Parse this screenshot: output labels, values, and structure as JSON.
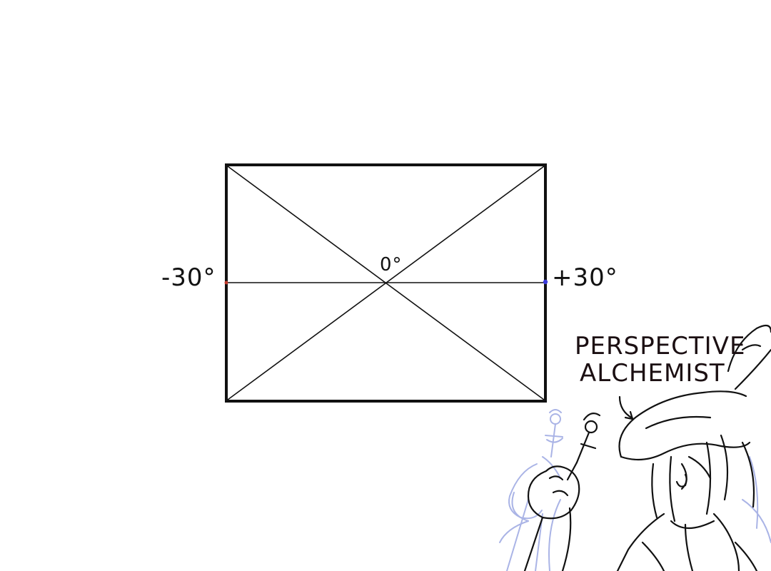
{
  "diagram": {
    "angle_left": "-30°",
    "angle_center": "0°",
    "angle_right": "+30°"
  },
  "character": {
    "title_line1": "PERSPECTIVE",
    "title_line2": "ALCHEMIST"
  },
  "colors": {
    "ink": "#111111",
    "sketch_blue": "#aab4e6",
    "left_marker": "#c0392b",
    "right_marker": "#3b3bdc",
    "background": "#ffffff"
  }
}
